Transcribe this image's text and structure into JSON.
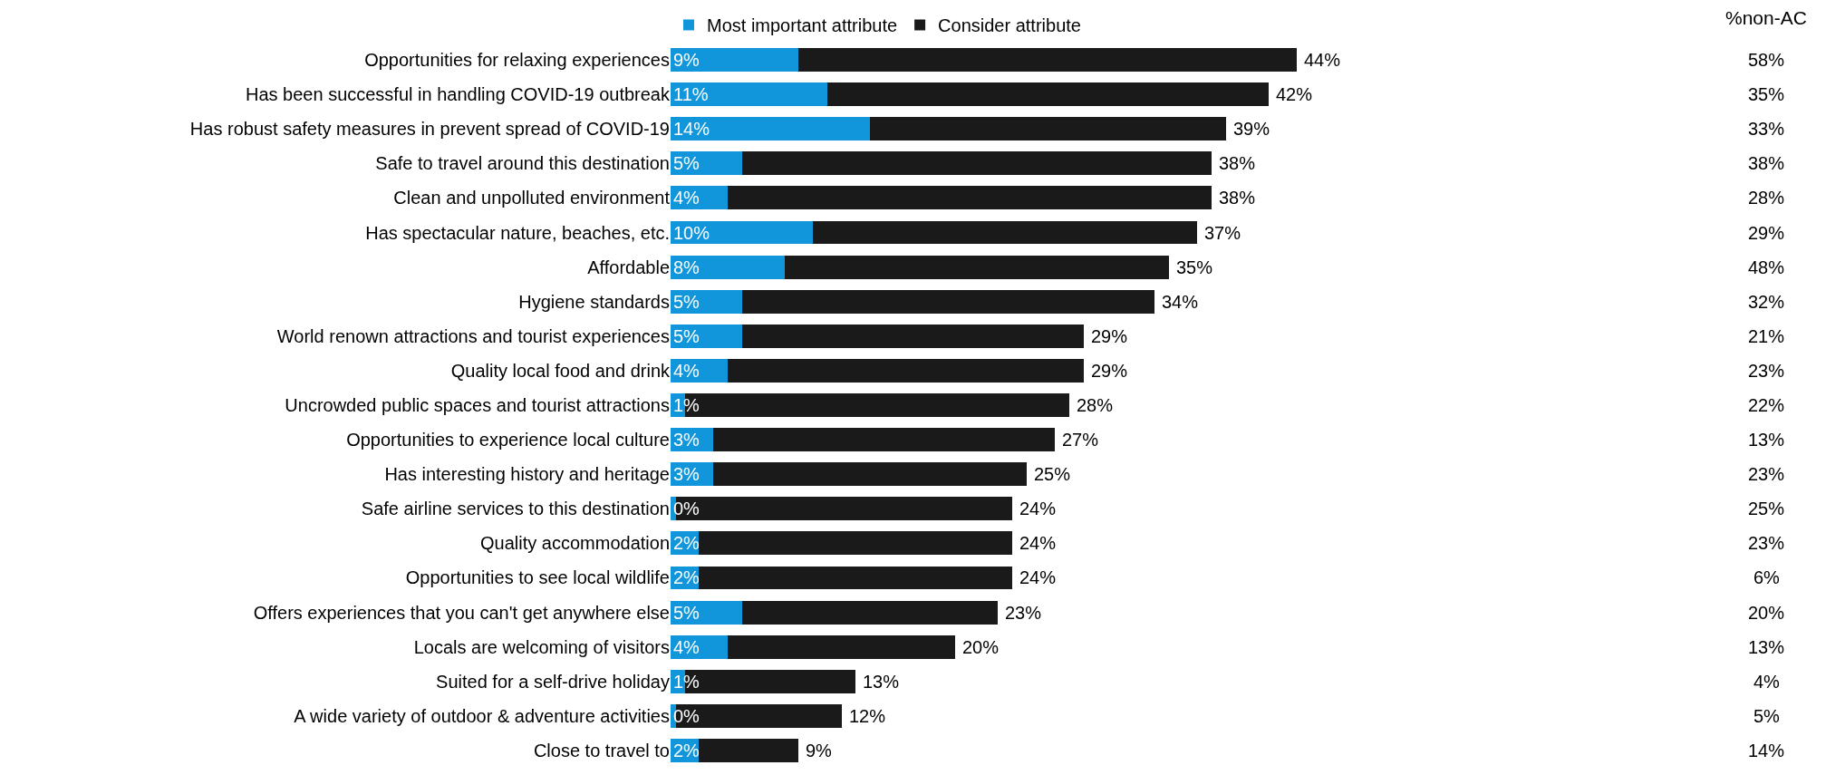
{
  "chart_data": {
    "type": "bar",
    "orientation": "horizontal",
    "stacked": true,
    "legend": "top",
    "tick_labels": "y",
    "categories": [
      "Opportunities for relaxing experiences",
      "Has been successful in handling COVID-19 outbreak",
      "Has robust safety measures in prevent spread of COVID-19",
      "Safe to travel around this destination",
      "Clean and unpolluted environment",
      "Has spectacular nature, beaches, etc.",
      "Affordable",
      "Hygiene standards",
      "World renown attractions and tourist experiences",
      "Quality local food and drink",
      "Uncrowded public spaces and tourist attractions",
      "Opportunities to experience local culture",
      "Has interesting history and heritage",
      "Safe airline services to this destination",
      "Quality accommodation",
      "Opportunities to see local wildlife",
      "Offers experiences that you can't get anywhere else",
      "Locals are welcoming of visitors",
      "Suited for a self-drive holiday",
      "A wide variety of outdoor & adventure activities",
      "Close to travel to"
    ],
    "series": [
      {
        "name": "Most important attribute",
        "color": "#1196dc",
        "values": [
          9,
          11,
          14,
          5,
          4,
          10,
          8,
          5,
          5,
          4,
          1,
          3,
          3,
          0.4,
          2,
          2,
          5,
          4,
          1,
          0.4,
          2
        ],
        "value_labels": [
          "9%",
          "11%",
          "14%",
          "5%",
          "4%",
          "10%",
          "8%",
          "5%",
          "5%",
          "4%",
          "1%",
          "3%",
          "3%",
          "0%",
          "2%",
          "2%",
          "5%",
          "4%",
          "1%",
          "0%",
          "2%"
        ]
      },
      {
        "name": "Consider attribute",
        "color": "#1a1a1a",
        "values": [
          35,
          31,
          25,
          33,
          34,
          27,
          27,
          29,
          24,
          25,
          27,
          24,
          22,
          23.6,
          22,
          22,
          18,
          16,
          12,
          11.6,
          7
        ]
      }
    ],
    "totals": [
      "44%",
      "42%",
      "39%",
      "38%",
      "38%",
      "37%",
      "35%",
      "34%",
      "29%",
      "29%",
      "28%",
      "27%",
      "25%",
      "24%",
      "24%",
      "24%",
      "23%",
      "20%",
      "13%",
      "12%",
      "9%"
    ],
    "annotations": [
      "%non-AC",
      "58%",
      "35%",
      "33%",
      "38%",
      "28%",
      "29%",
      "48%",
      "32%",
      "21%",
      "23%",
      "22%",
      "13%",
      "23%",
      "25%",
      "23%",
      "6%",
      "20%",
      "13%",
      "4%",
      "5%",
      "14%"
    ]
  }
}
